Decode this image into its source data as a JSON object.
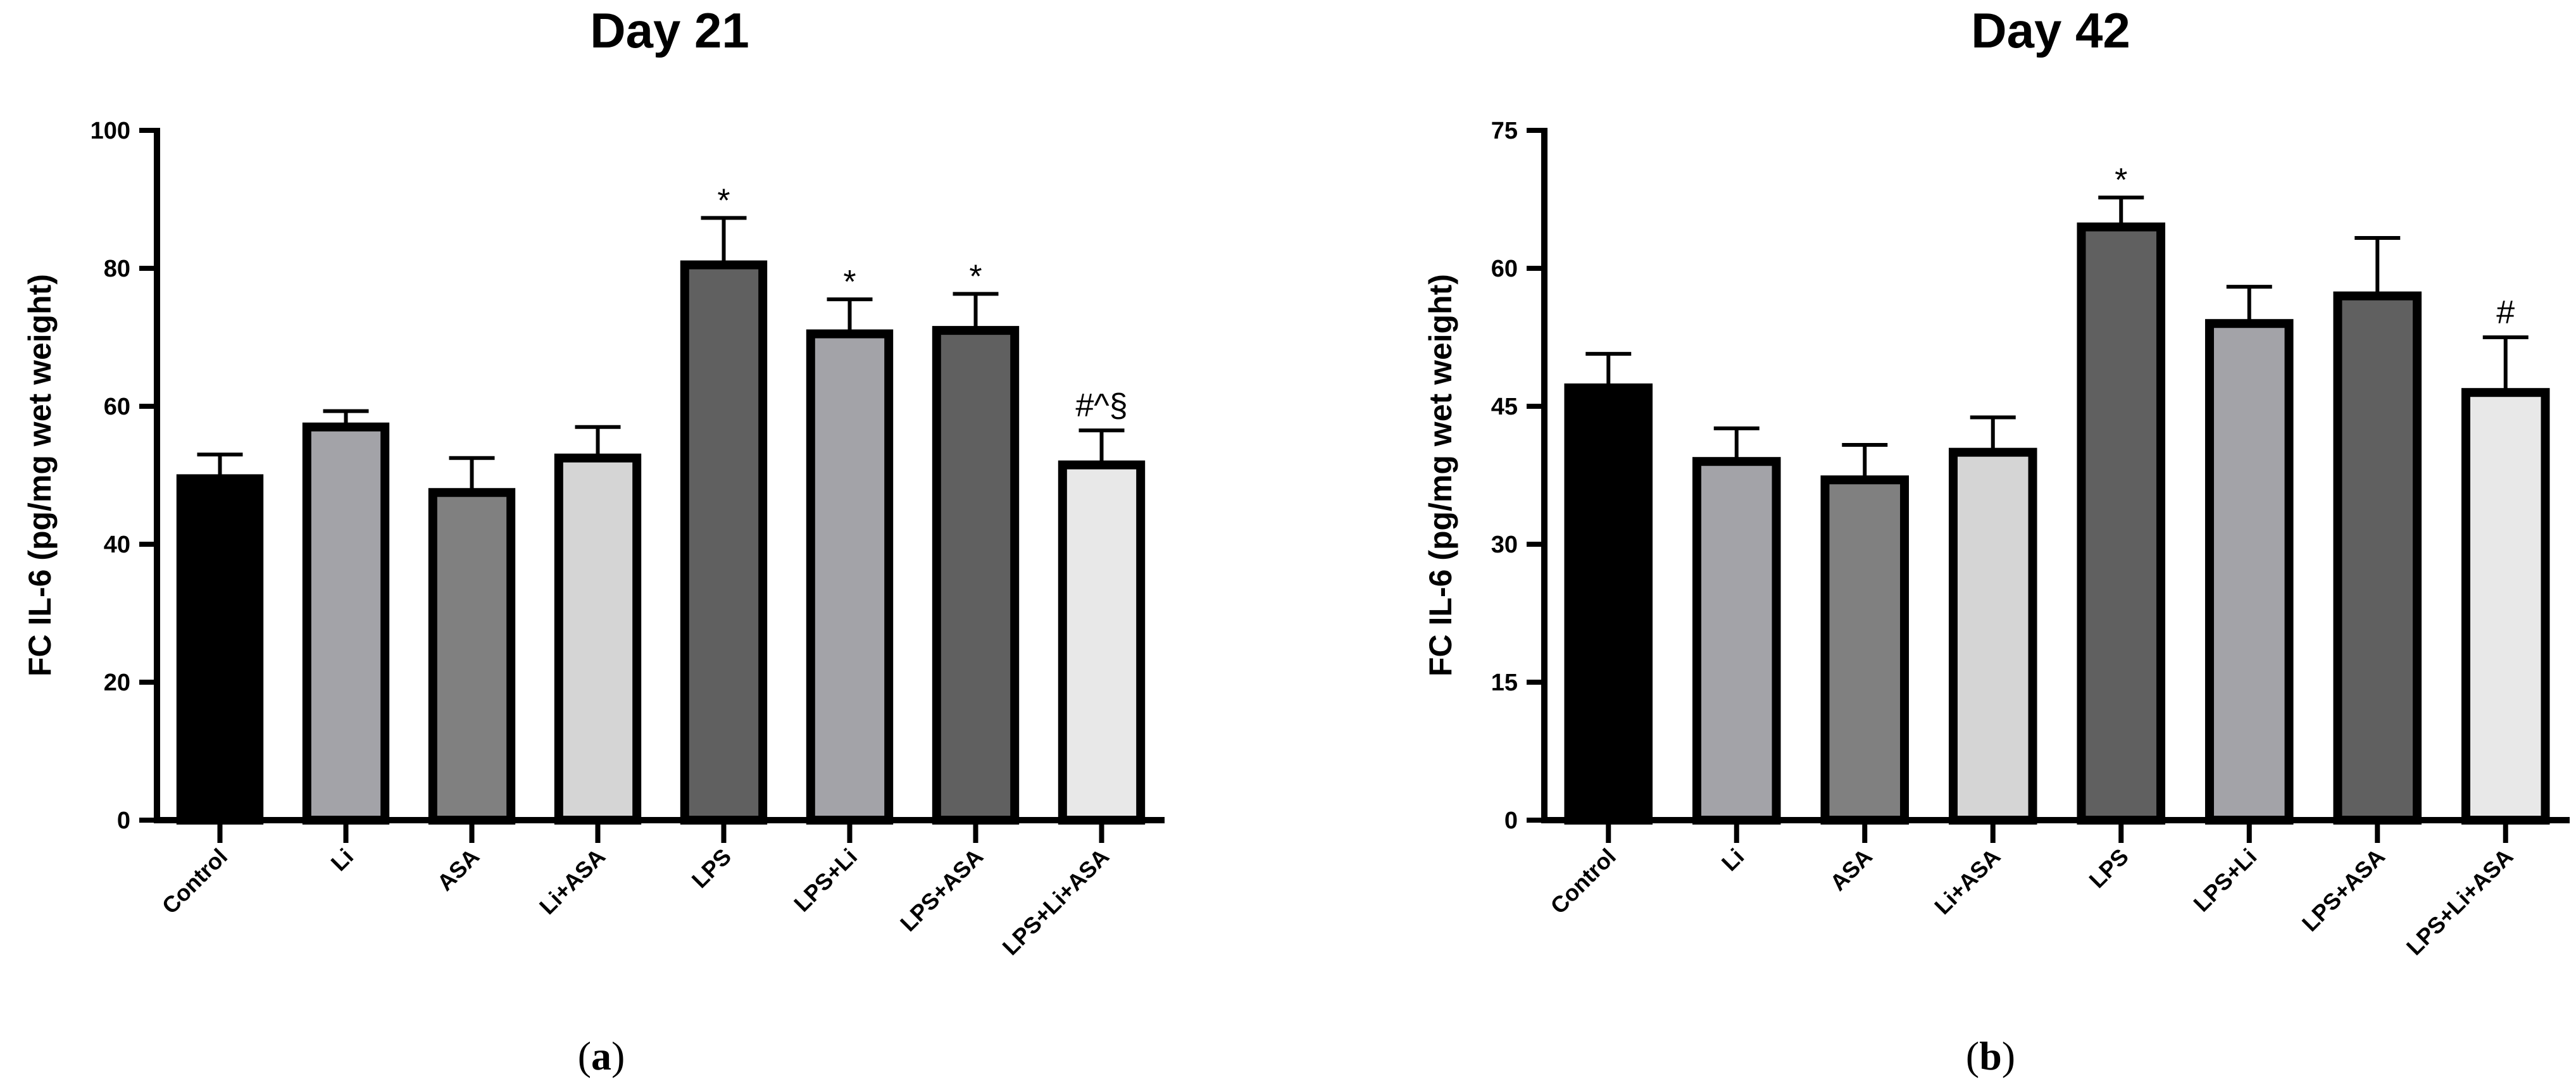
{
  "chart_data": [
    {
      "type": "bar",
      "panel_label": "a",
      "title": "Day 21",
      "xlabel": "",
      "ylabel": "FC IL-6 (pg/mg wet weight)",
      "ylim": [
        0,
        100
      ],
      "yticks": [
        0,
        20,
        40,
        60,
        80,
        100
      ],
      "categories": [
        "Control",
        "Li",
        "ASA",
        "Li+ASA",
        "LPS",
        "LPS+Li",
        "LPS+ASA",
        "LPS+Li+ASA"
      ],
      "values": [
        49.5,
        57,
        47.5,
        52.5,
        80.5,
        70.5,
        71,
        51.5
      ],
      "errors": [
        3.5,
        2.3,
        5,
        4.5,
        6.8,
        5,
        5.3,
        5
      ],
      "colors": [
        "#000000",
        "#a3a3a8",
        "#808080",
        "#d5d5d5",
        "#606060",
        "#a3a3a8",
        "#606060",
        "#e8e8e8"
      ],
      "annotations": [
        "",
        "",
        "",
        "",
        "*",
        "*",
        "*",
        "#^§"
      ],
      "grid": false,
      "legend": "none"
    },
    {
      "type": "bar",
      "panel_label": "b",
      "title": "Day 42",
      "xlabel": "",
      "ylabel": "FC IL-6 (pg/mg wet weight)",
      "ylim": [
        0,
        75
      ],
      "yticks": [
        0,
        15,
        30,
        45,
        60,
        75
      ],
      "categories": [
        "Control",
        "Li",
        "ASA",
        "Li+ASA",
        "LPS",
        "LPS+Li",
        "LPS+ASA",
        "LPS+Li+ASA"
      ],
      "values": [
        47,
        39,
        37,
        40,
        64.5,
        54,
        57,
        46.5
      ],
      "errors": [
        3.7,
        3.6,
        3.8,
        3.8,
        3.2,
        4,
        6.3,
        6
      ],
      "colors": [
        "#000000",
        "#a3a3a8",
        "#808080",
        "#d5d5d5",
        "#606060",
        "#a3a3a8",
        "#606060",
        "#e8e8e8"
      ],
      "annotations": [
        "",
        "",
        "",
        "",
        "*",
        "",
        "",
        "#"
      ],
      "grid": false,
      "legend": "none"
    }
  ]
}
